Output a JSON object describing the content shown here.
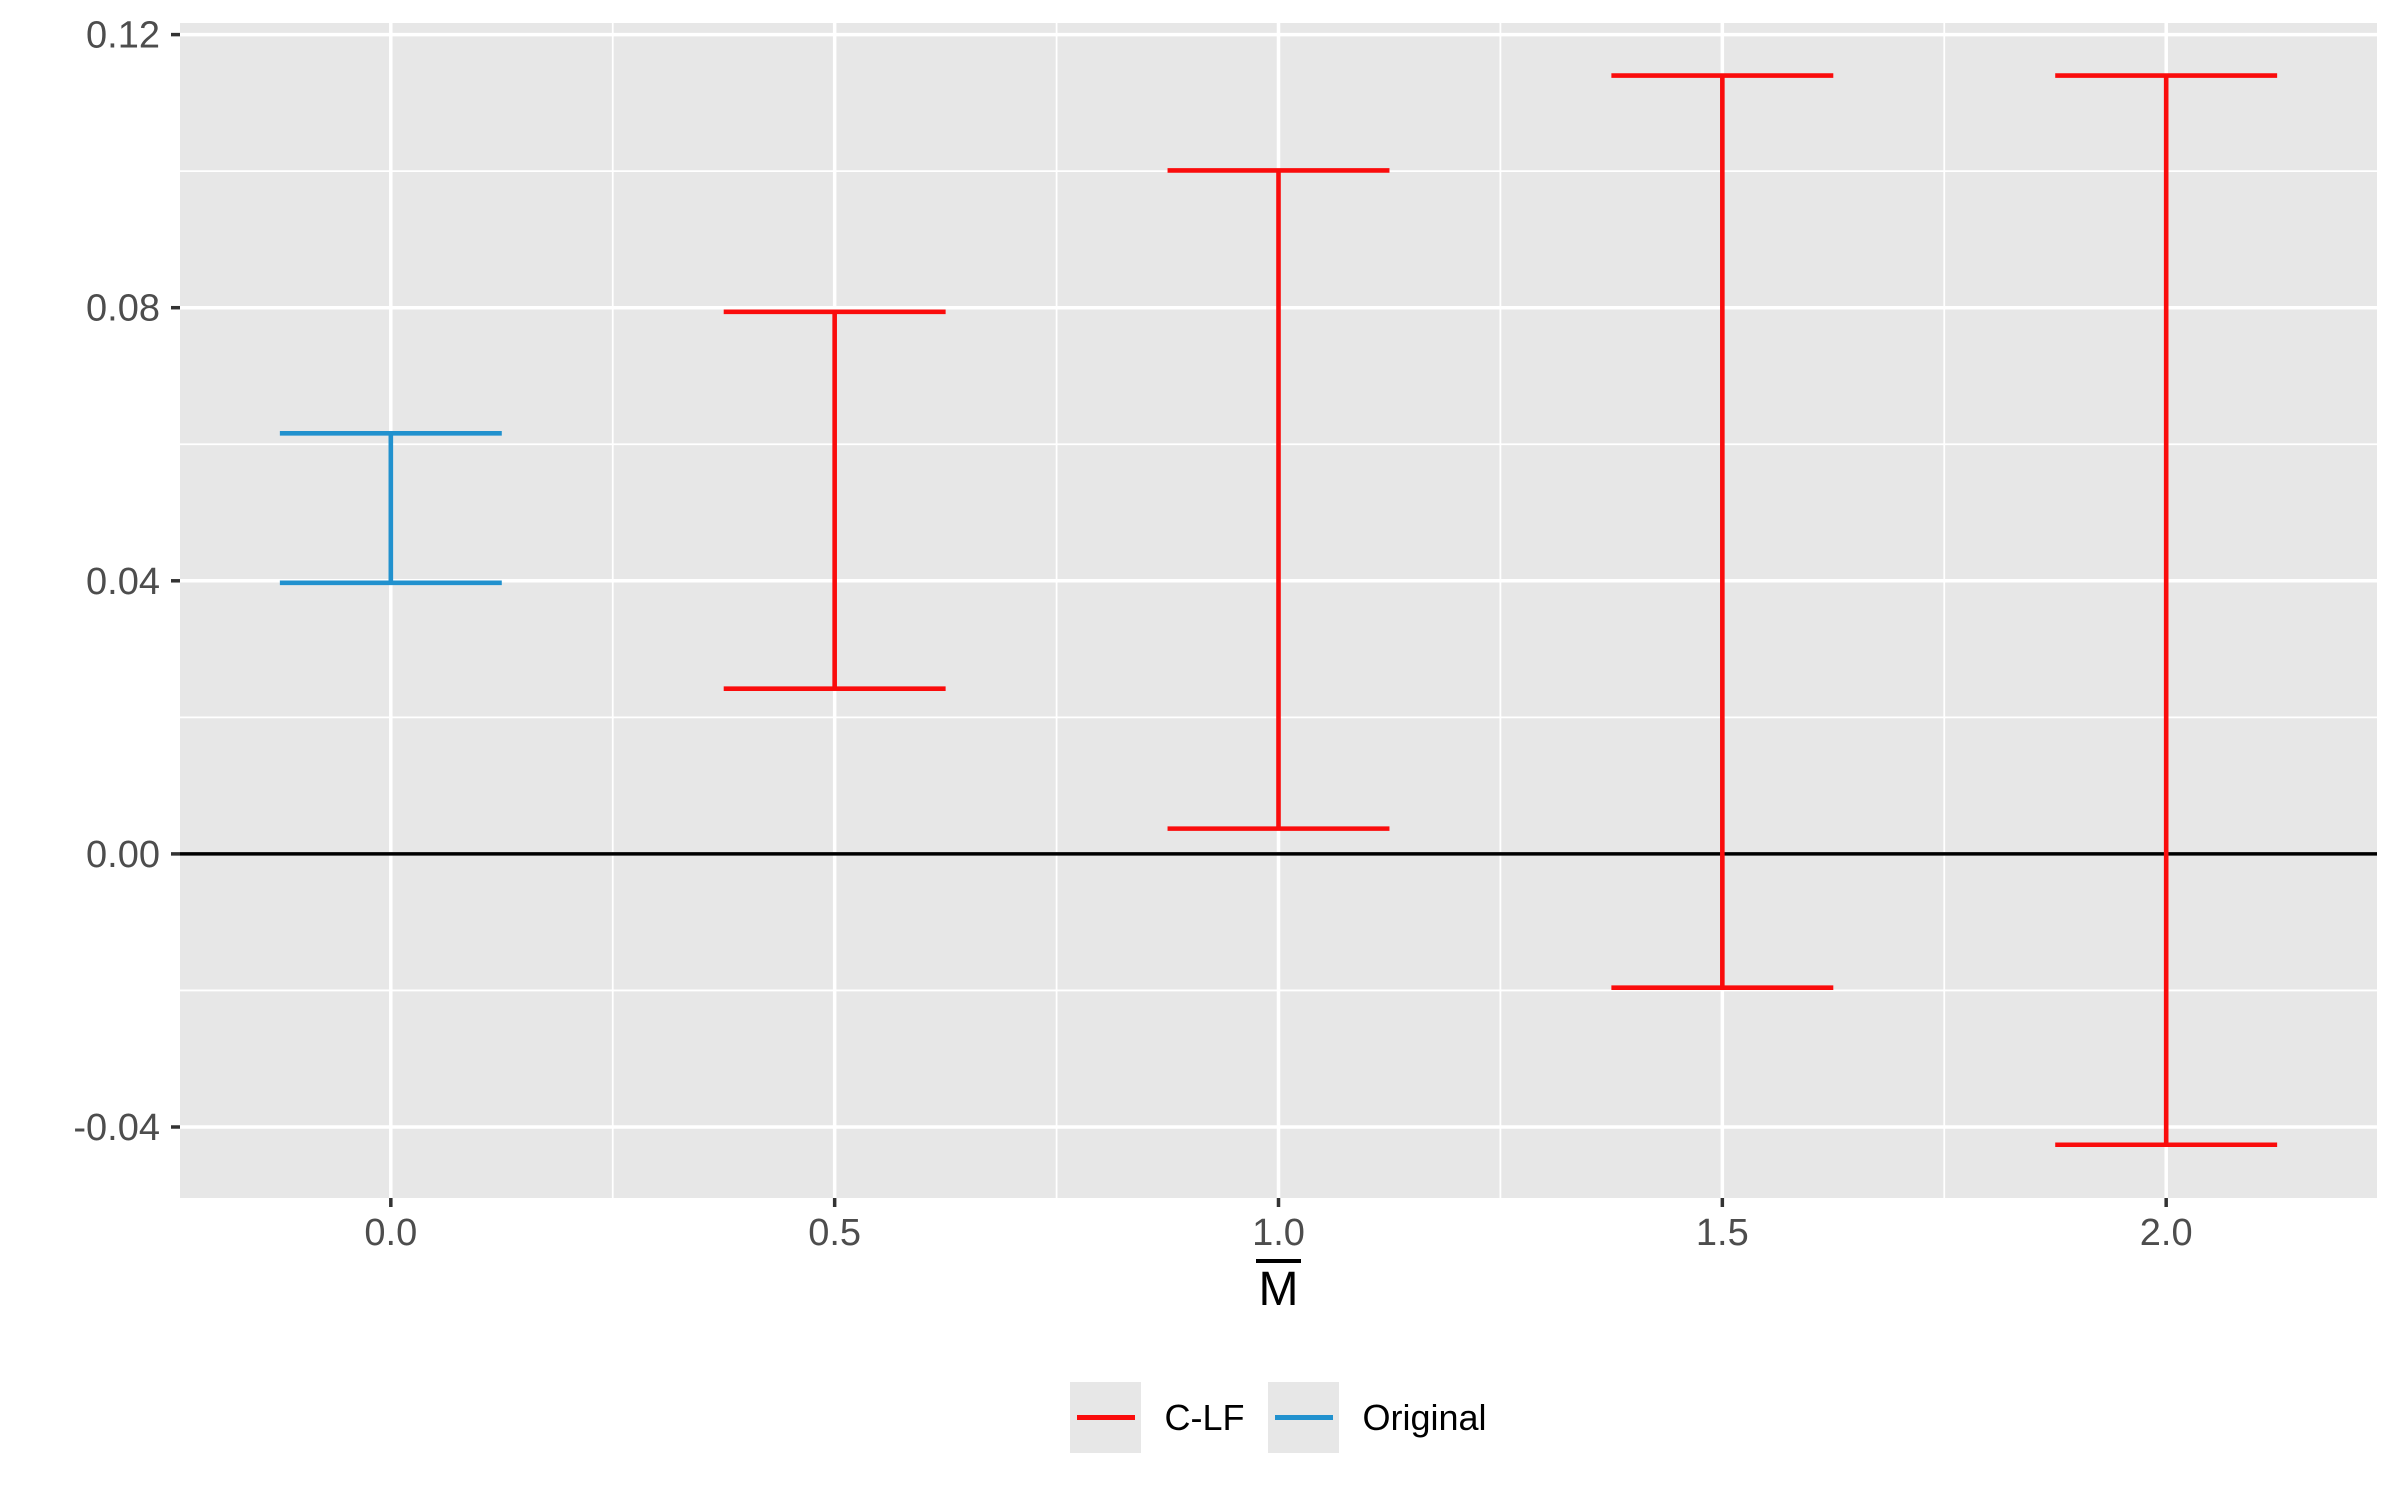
{
  "chart_data": {
    "type": "errorbar",
    "title": "",
    "xlabel": "M",
    "xlabel_overbar": true,
    "ylabel": "",
    "x_ticks": {
      "values": [
        0.0,
        0.5,
        1.0,
        1.5,
        2.0
      ],
      "labels": [
        "0.0",
        "0.5",
        "1.0",
        "1.5",
        "2.0"
      ]
    },
    "y_ticks": {
      "values": [
        0.12,
        0.08,
        0.04,
        0.0,
        -0.04
      ],
      "labels": [
        "0.12",
        "0.08",
        "0.04",
        "0.00",
        "-0.04"
      ]
    },
    "xlim": [
      -0.2375,
      2.2375
    ],
    "ylim": [
      -0.0504,
      0.1217
    ],
    "minor_x_step": 0.25,
    "minor_y_step": 0.02,
    "grid": true,
    "zero_line_y": 0.0,
    "cap_halfwidth": 0.125,
    "legend_position": "bottom",
    "series": [
      {
        "name": "C-LF",
        "color": "#FA0C0C"
      },
      {
        "name": "Original",
        "color": "#2191CE"
      }
    ],
    "points": [
      {
        "x": 0.0,
        "ymin": 0.0397,
        "ymax": 0.0616,
        "series": "Original"
      },
      {
        "x": 0.5,
        "ymin": 0.0242,
        "ymax": 0.0794,
        "series": "C-LF"
      },
      {
        "x": 1.0,
        "ymin": 0.0037,
        "ymax": 0.1001,
        "series": "C-LF"
      },
      {
        "x": 1.5,
        "ymin": -0.0196,
        "ymax": 0.114,
        "series": "C-LF"
      },
      {
        "x": 2.0,
        "ymin": -0.0426,
        "ymax": 0.114,
        "series": "C-LF"
      }
    ],
    "colors": {
      "panel_bg": "#E7E7E7",
      "grid": "#FFFFFF",
      "zero_line": "#000000",
      "axis_text": "#4D4D4D",
      "tick_mark": "#333333",
      "legend_key_bg": "#E7E7E7",
      "axis_title": "#000000"
    }
  }
}
